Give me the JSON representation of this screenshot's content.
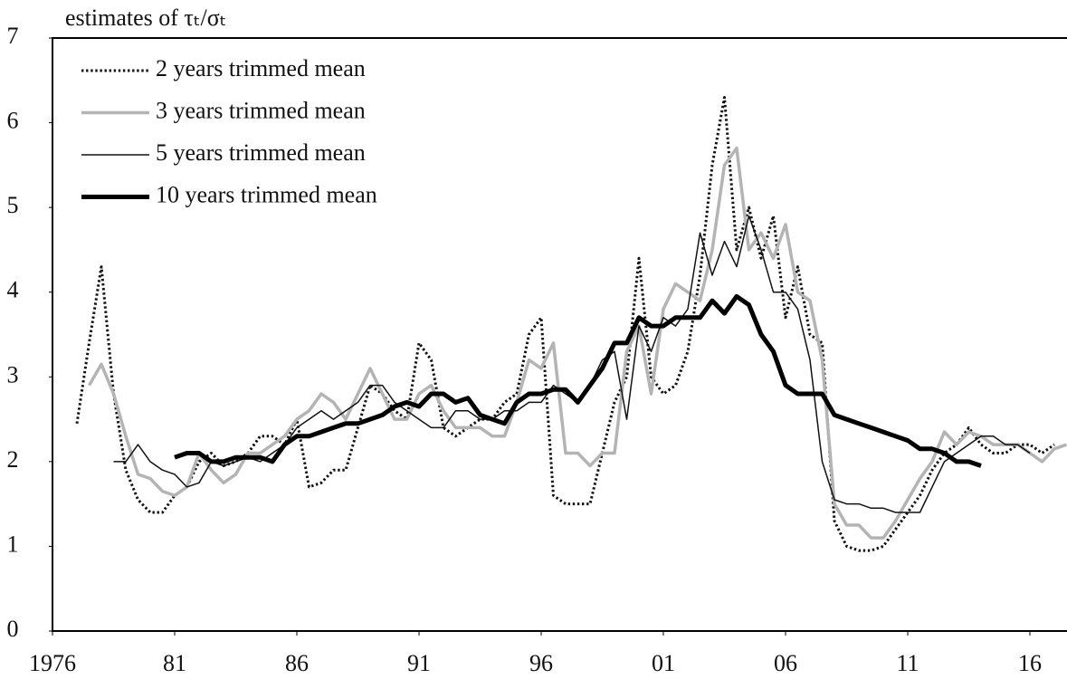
{
  "chart_data": {
    "type": "line",
    "y_label": "estimates of τₜ/σₜ",
    "x": [
      1977.0,
      1977.5,
      1978.0,
      1978.5,
      1979.0,
      1979.5,
      1980.0,
      1980.5,
      1981.0,
      1981.5,
      1982.0,
      1982.5,
      1983.0,
      1983.5,
      1984.0,
      1984.5,
      1985.0,
      1985.5,
      1986.0,
      1986.5,
      1987.0,
      1987.5,
      1988.0,
      1988.5,
      1989.0,
      1989.5,
      1990.0,
      1990.5,
      1991.0,
      1991.5,
      1992.0,
      1992.5,
      1993.0,
      1993.5,
      1994.0,
      1994.5,
      1995.0,
      1995.5,
      1996.0,
      1996.5,
      1997.0,
      1997.5,
      1998.0,
      1998.5,
      1999.0,
      1999.5,
      2000.0,
      2000.5,
      2001.0,
      2001.5,
      2002.0,
      2002.5,
      2003.0,
      2003.5,
      2004.0,
      2004.5,
      2005.0,
      2005.5,
      2006.0,
      2006.5,
      2007.0,
      2007.5,
      2008.0,
      2008.5,
      2009.0,
      2009.5,
      2010.0,
      2010.5,
      2011.0,
      2011.5,
      2012.0,
      2012.5,
      2013.0,
      2013.5,
      2014.0,
      2014.5,
      2015.0,
      2015.5,
      2016.0,
      2016.5,
      2017.0,
      2017.5
    ],
    "series": [
      {
        "name": "2 years trimmed mean",
        "color": "#111111",
        "line_style": "dotted",
        "line_width": 3,
        "values": [
          2.45,
          3.4,
          4.3,
          2.8,
          1.9,
          1.55,
          1.4,
          1.4,
          1.6,
          1.7,
          2.0,
          2.1,
          1.95,
          2.0,
          2.1,
          2.3,
          2.3,
          2.2,
          2.5,
          1.7,
          1.75,
          1.9,
          1.9,
          2.4,
          2.9,
          2.8,
          2.6,
          2.5,
          3.4,
          3.2,
          2.4,
          2.3,
          2.4,
          2.5,
          2.5,
          2.7,
          2.8,
          3.5,
          3.7,
          1.6,
          1.5,
          1.5,
          1.5,
          2.1,
          2.7,
          3.0,
          4.4,
          3.0,
          2.8,
          2.9,
          3.3,
          4.2,
          5.5,
          6.3,
          4.5,
          5.0,
          4.4,
          4.9,
          3.7,
          4.3,
          3.5,
          3.4,
          1.3,
          1.0,
          0.95,
          0.95,
          1.0,
          1.2,
          1.4,
          1.6,
          1.9,
          2.1,
          2.2,
          2.4,
          2.2,
          2.1,
          2.1,
          2.2,
          2.2,
          2.1,
          2.2,
          null
        ]
      },
      {
        "name": "3 years trimmed mean",
        "color": "#b4b4b4",
        "line_style": "solid",
        "line_width": 3.5,
        "values": [
          null,
          2.9,
          3.15,
          2.8,
          2.3,
          1.85,
          1.8,
          1.65,
          1.6,
          1.7,
          2.1,
          1.9,
          1.75,
          1.85,
          2.1,
          2.1,
          2.2,
          2.3,
          2.5,
          2.6,
          2.8,
          2.7,
          2.5,
          2.8,
          3.1,
          2.8,
          2.5,
          2.5,
          2.8,
          2.9,
          2.6,
          2.4,
          2.4,
          2.4,
          2.3,
          2.3,
          2.7,
          3.2,
          3.1,
          3.4,
          2.1,
          2.1,
          1.95,
          2.1,
          2.1,
          3.3,
          3.6,
          2.8,
          3.8,
          4.1,
          4.0,
          3.9,
          4.5,
          5.5,
          5.7,
          4.5,
          4.7,
          4.4,
          4.8,
          4.0,
          3.9,
          3.2,
          1.5,
          1.25,
          1.25,
          1.1,
          1.1,
          1.3,
          1.55,
          1.8,
          2.0,
          2.35,
          2.2,
          2.35,
          2.3,
          2.2,
          2.2,
          2.2,
          2.1,
          2.0,
          2.15,
          2.2
        ]
      },
      {
        "name": "5 years trimmed mean",
        "color": "#111111",
        "line_style": "solid",
        "line_width": 1.5,
        "values": [
          null,
          null,
          null,
          2.0,
          2.0,
          2.2,
          2.0,
          1.9,
          1.85,
          1.7,
          1.75,
          2.0,
          1.95,
          2.0,
          2.05,
          2.0,
          2.1,
          2.2,
          2.4,
          2.5,
          2.6,
          2.5,
          2.6,
          2.7,
          2.9,
          2.9,
          2.7,
          2.6,
          2.5,
          2.4,
          2.4,
          2.6,
          2.6,
          2.5,
          2.5,
          2.6,
          2.6,
          2.7,
          2.7,
          2.9,
          2.8,
          2.7,
          2.9,
          3.2,
          3.3,
          2.5,
          3.6,
          3.3,
          3.7,
          3.6,
          3.8,
          4.7,
          4.2,
          4.6,
          4.3,
          4.9,
          4.5,
          4.0,
          4.0,
          3.8,
          3.2,
          2.0,
          1.55,
          1.5,
          1.5,
          1.45,
          1.45,
          1.4,
          1.4,
          1.4,
          1.7,
          2.0,
          2.1,
          2.2,
          2.3,
          2.3,
          2.2,
          2.2,
          2.1,
          null,
          null,
          null
        ]
      },
      {
        "name": "10 years trimmed mean",
        "color": "#000000",
        "line_style": "solid",
        "line_width": 5,
        "values": [
          null,
          null,
          null,
          null,
          null,
          null,
          null,
          null,
          2.05,
          2.1,
          2.1,
          2.0,
          2.0,
          2.05,
          2.05,
          2.05,
          2.0,
          2.2,
          2.3,
          2.3,
          2.35,
          2.4,
          2.45,
          2.45,
          2.5,
          2.55,
          2.65,
          2.7,
          2.65,
          2.8,
          2.8,
          2.7,
          2.75,
          2.55,
          2.5,
          2.45,
          2.7,
          2.8,
          2.8,
          2.85,
          2.85,
          2.7,
          2.9,
          3.1,
          3.4,
          3.4,
          3.7,
          3.6,
          3.6,
          3.7,
          3.7,
          3.7,
          3.9,
          3.75,
          3.95,
          3.85,
          3.5,
          3.3,
          2.9,
          2.8,
          2.8,
          2.8,
          2.55,
          2.5,
          2.45,
          2.4,
          2.35,
          2.3,
          2.25,
          2.15,
          2.15,
          2.1,
          2.0,
          2.0,
          1.95,
          null,
          null,
          null,
          null,
          null,
          null,
          null
        ]
      }
    ],
    "xlim": [
      1976,
      2017.5
    ],
    "xticks": [
      1976,
      {
        "value": 1981,
        "label": "81"
      },
      {
        "value": 1986,
        "label": "86"
      },
      {
        "value": 1991,
        "label": "91"
      },
      {
        "value": 1996,
        "label": "96"
      },
      {
        "value": 2001,
        "label": "01"
      },
      {
        "value": 2006,
        "label": "06"
      },
      {
        "value": 2011,
        "label": "11"
      },
      {
        "value": 2016,
        "label": "16"
      }
    ],
    "ylim": [
      0,
      7
    ],
    "yticks": [
      0,
      1,
      2,
      3,
      4,
      5,
      6,
      7
    ],
    "grid": false,
    "legend": "top-left"
  }
}
